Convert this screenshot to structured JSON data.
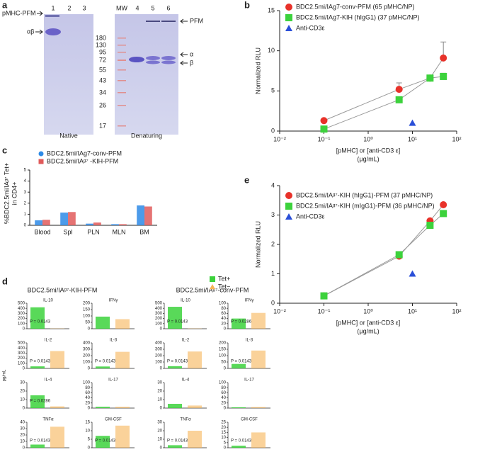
{
  "gel": {
    "panel": "a",
    "left": {
      "label": "pMHC-PFM",
      "band": "αβ",
      "lanes": [
        "1",
        "2",
        "3"
      ],
      "caption": "Native"
    },
    "right": {
      "lanes": [
        "MW",
        "4",
        "5",
        "6"
      ],
      "mw": [
        "180",
        "130",
        "95",
        "72",
        "55",
        "43",
        "34",
        "26",
        "17"
      ],
      "labels": [
        "PFM",
        "α",
        "β"
      ],
      "caption": "Denaturing"
    }
  },
  "chart_data": [
    {
      "type": "scatter-line",
      "panel": "b",
      "ylabel": "Normalized RLU",
      "xlabel": "[pMHC] or [anti-CD3 ε]",
      "xunit": "(μg/mL)",
      "log_x": true,
      "line_color": "#999999",
      "xlim": [
        0.01,
        100
      ],
      "xticks": [
        {
          "value": 0.01,
          "label": "10⁻²"
        },
        {
          "value": 0.1,
          "label": "10⁻¹"
        },
        {
          "value": 1,
          "label": "10⁰"
        },
        {
          "value": 10,
          "label": "10¹"
        },
        {
          "value": 100,
          "label": "10²"
        }
      ],
      "ylim": [
        0,
        15
      ],
      "yticks": [
        0,
        5,
        10,
        15
      ],
      "series": [
        {
          "name": "BDC2.5mi/IAg7-conv-PFM (65 pMHC/NP)",
          "color": "#e8322a",
          "marker": "circle",
          "line": true,
          "x": [
            0.1,
            5,
            25,
            50
          ],
          "values": [
            1.3,
            5.2,
            6.6,
            9.1
          ],
          "errors": [
            0,
            0.8,
            0.3,
            2.0
          ]
        },
        {
          "name": "BDC2.5mi/IAg7-KIH (hIgG1) (37 pMHC/NP)",
          "color": "#3cd23c",
          "marker": "square",
          "line": true,
          "x": [
            0.1,
            5,
            25,
            50
          ],
          "values": [
            0.25,
            3.9,
            6.6,
            6.8
          ],
          "errors": [
            0,
            0.3,
            0.3,
            0.4
          ]
        },
        {
          "name": "Anti-CD3ε",
          "color": "#2a4fd8",
          "marker": "triangle",
          "line": false,
          "x": [
            10
          ],
          "values": [
            1.0
          ],
          "errors": [
            0
          ]
        }
      ]
    },
    {
      "type": "bar",
      "panel": "c",
      "ylabel": "%BDC2.5mi/IAᵍ⁷ Tet+",
      "ylabel2": "in CD4+",
      "categories": [
        "Blood",
        "Spl",
        "PLN",
        "MLN",
        "BM"
      ],
      "ylim": [
        0,
        5
      ],
      "yticks": [
        0,
        1,
        2,
        3,
        4,
        5
      ],
      "series": [
        {
          "name": "BDC2.5mi/IAg7-conv-PFM",
          "color": "#2d8ae6",
          "marker": "circle",
          "values": [
            0.45,
            1.15,
            0.15,
            0.1,
            1.8
          ]
        },
        {
          "name": "BDC2.5mi/IAᵍ⁷ -KIH-PFM",
          "color": "#e05a5a",
          "marker": "square",
          "values": [
            0.5,
            1.2,
            0.25,
            0.1,
            1.7
          ]
        }
      ]
    },
    {
      "type": "small-multiples",
      "panel": "d",
      "ylabel": "pg/mL",
      "group_titles": [
        "BDC2.5mi/IAᵍ⁷-KIH-PFM",
        "BDC2.5mi/IAᵍ⁷-conv-PFM"
      ],
      "legend": [
        {
          "name": "Tet+",
          "color": "#3cd23c",
          "marker": "square"
        },
        {
          "name": "Tet−",
          "color": "#f7b456",
          "marker": "triangle"
        }
      ],
      "panels": [
        {
          "title": "IL-10",
          "values": [
            420,
            5
          ],
          "ylim": [
            0,
            500
          ],
          "yticks": [
            0,
            100,
            200,
            300,
            400,
            500
          ],
          "p_label": "P = 0.0143"
        },
        {
          "title": "IFNγ",
          "values": [
            95,
            75
          ],
          "ylim": [
            0,
            200
          ],
          "yticks": [
            0,
            50,
            100,
            150,
            200
          ]
        },
        {
          "title": "IL-10",
          "values": [
            430,
            5
          ],
          "ylim": [
            0,
            500
          ],
          "yticks": [
            0,
            100,
            200,
            300,
            400,
            500
          ],
          "p_label": "P = 0.0143"
        },
        {
          "title": "IFNγ",
          "values": [
            40,
            62
          ],
          "ylim": [
            0,
            100
          ],
          "yticks": [
            0,
            20,
            40,
            60,
            80,
            100
          ],
          "p_label": "P = 0.0286"
        },
        {
          "title": "IL-2",
          "values": [
            40,
            340
          ],
          "ylim": [
            0,
            500
          ],
          "yticks": [
            0,
            100,
            200,
            300,
            400,
            500
          ],
          "p_label": "P = 0.0143"
        },
        {
          "title": "IL-3",
          "values": [
            30,
            260
          ],
          "ylim": [
            0,
            400
          ],
          "yticks": [
            0,
            100,
            200,
            300,
            400
          ],
          "p_label": "P = 0.0143"
        },
        {
          "title": "IL-2",
          "values": [
            35,
            265
          ],
          "ylim": [
            0,
            400
          ],
          "yticks": [
            0,
            100,
            200,
            300,
            400
          ],
          "p_label": "P = 0.0143"
        },
        {
          "title": "IL-3",
          "values": [
            35,
            140
          ],
          "ylim": [
            0,
            200
          ],
          "yticks": [
            0,
            50,
            100,
            150,
            200
          ],
          "p_label": "P = 0.0143"
        },
        {
          "title": "IL-4",
          "values": [
            15,
            2
          ],
          "ylim": [
            0,
            30
          ],
          "yticks": [
            0,
            10,
            20,
            30
          ],
          "p_label": "P = 0.0286"
        },
        {
          "title": "IL-17",
          "values": [
            5,
            5
          ],
          "ylim": [
            0,
            100
          ],
          "yticks": [
            0,
            20,
            40,
            60,
            80,
            100
          ]
        },
        {
          "title": "IL-4",
          "values": [
            5,
            3
          ],
          "ylim": [
            0,
            30
          ],
          "yticks": [
            0,
            10,
            20,
            30
          ]
        },
        {
          "title": "IL-17",
          "values": [
            3,
            4
          ],
          "ylim": [
            0,
            100
          ],
          "yticks": [
            0,
            20,
            40,
            60,
            80,
            100
          ]
        },
        {
          "title": "TNFα",
          "values": [
            5,
            33
          ],
          "ylim": [
            0,
            40
          ],
          "yticks": [
            0,
            10,
            20,
            30,
            40
          ],
          "p_label": "P = 0.0143"
        },
        {
          "title": "GM-CSF",
          "values": [
            7,
            13
          ],
          "ylim": [
            0,
            15
          ],
          "yticks": [
            0,
            5,
            10,
            15
          ],
          "p_label": "P = 0.0143"
        },
        {
          "title": "TNFα",
          "values": [
            3,
            20
          ],
          "ylim": [
            0,
            30
          ],
          "yticks": [
            0,
            10,
            20,
            30
          ],
          "p_label": "P = 0.0143"
        },
        {
          "title": "GM-CSF",
          "values": [
            2,
            15
          ],
          "ylim": [
            0,
            25
          ],
          "yticks": [
            0,
            5,
            10,
            15,
            20,
            25
          ],
          "p_label": "P = 0.0143"
        }
      ]
    },
    {
      "type": "scatter-line",
      "panel": "e",
      "ylabel": "Normalized RLU",
      "xlabel": "[pMHC] or [anti-CD3 ε]",
      "xunit": "(μg/mL)",
      "log_x": true,
      "line_color": "#999999",
      "xlim": [
        0.01,
        100
      ],
      "xticks": [
        {
          "value": 0.01,
          "label": "10⁻²"
        },
        {
          "value": 0.1,
          "label": "10⁻¹"
        },
        {
          "value": 1,
          "label": "10⁰"
        },
        {
          "value": 10,
          "label": "10¹"
        },
        {
          "value": 100,
          "label": "10²"
        }
      ],
      "ylim": [
        0,
        4
      ],
      "yticks": [
        0,
        1,
        2,
        3,
        4
      ],
      "series": [
        {
          "name": "BDC2.5mi/IAᵍ⁷-KIH (hIgG1)-PFM (37 pMHC/NP)",
          "color": "#e8322a",
          "marker": "circle",
          "line": true,
          "x": [
            0.1,
            5,
            25,
            50
          ],
          "values": [
            0.25,
            1.6,
            2.8,
            3.35
          ],
          "errors": [
            0,
            0,
            0,
            0
          ]
        },
        {
          "name": "BDC2.5mi/IAᵍ⁷-KIH (mIgG1)-PFM (36 pMHC/NP)",
          "color": "#3cd23c",
          "marker": "square",
          "line": true,
          "x": [
            0.1,
            5,
            25,
            50
          ],
          "values": [
            0.25,
            1.65,
            2.65,
            3.05
          ],
          "errors": [
            0,
            0,
            0,
            0
          ]
        },
        {
          "name": "Anti-CD3ε",
          "color": "#2a4fd8",
          "marker": "triangle",
          "line": false,
          "x": [
            10
          ],
          "values": [
            1.0
          ],
          "errors": [
            0
          ]
        }
      ]
    }
  ]
}
